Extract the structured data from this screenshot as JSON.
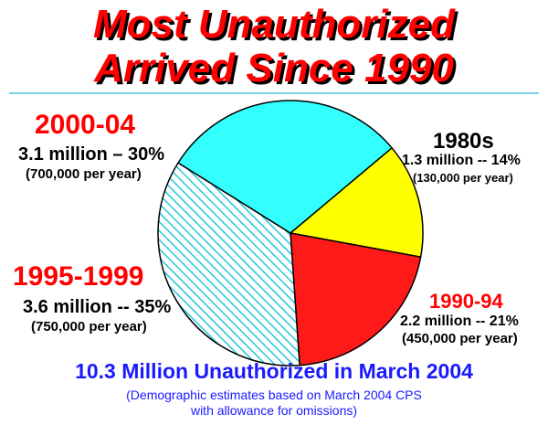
{
  "title": {
    "line1": "Most Unauthorized",
    "line2": "Arrived Since 1990"
  },
  "chart_data": {
    "type": "pie",
    "categories": [
      "1980s",
      "1990-94",
      "1995-1999",
      "2000-04"
    ],
    "values": [
      14,
      21,
      35,
      30
    ],
    "slices": [
      {
        "name": "1980s",
        "amount": "1.3 million -- 14%",
        "per_year": "(130,000 per year)",
        "percent": 14,
        "color": "#ffff00",
        "pattern": "solid"
      },
      {
        "name": "1990-94",
        "amount": "2.2 million -- 21%",
        "per_year": "(450,000 per year)",
        "percent": 21,
        "color": "#ff1a1a",
        "pattern": "solid"
      },
      {
        "name": "1995-1999",
        "amount": "3.6 million -- 35%",
        "per_year": "(750,000 per year)",
        "percent": 35,
        "color": "#2ee6f0",
        "pattern": "hatched"
      },
      {
        "name": "2000-04",
        "amount": "3.1 million – 30%",
        "per_year": "(700,000 per year)",
        "percent": 30,
        "color": "#33ffff",
        "pattern": "solid"
      }
    ]
  },
  "summary": "10.3 Million Unauthorized in March 2004",
  "note": {
    "line1": "(Demographic estimates based on March 2004 CPS",
    "line2": "with allowance for omissions)"
  }
}
